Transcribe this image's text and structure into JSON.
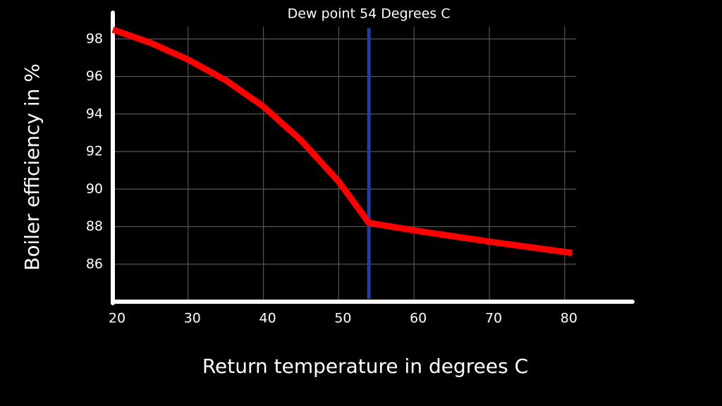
{
  "chart_data": {
    "type": "line",
    "x_label": "Return temperature in degrees C",
    "y_label": "Boiler efficiency in %",
    "x": [
      20,
      25,
      30,
      35,
      40,
      45,
      50,
      54,
      60,
      70,
      81
    ],
    "series": [
      {
        "color": "#ff0000",
        "values": [
          98.5,
          97.8,
          96.9,
          95.8,
          94.4,
          92.6,
          90.4,
          88.2,
          87.8,
          87.2,
          86.6
        ]
      }
    ],
    "xlim": [
      20,
      89
    ],
    "ylim": [
      84,
      99.4
    ],
    "xticks": [
      20,
      30,
      40,
      50,
      60,
      70,
      80
    ],
    "yticks": [
      86,
      88,
      90,
      92,
      94,
      96,
      98
    ],
    "grid": true,
    "vline": {
      "x": 54,
      "label": "Dew point 54 Degrees C",
      "color": "#1f3fa0"
    }
  }
}
